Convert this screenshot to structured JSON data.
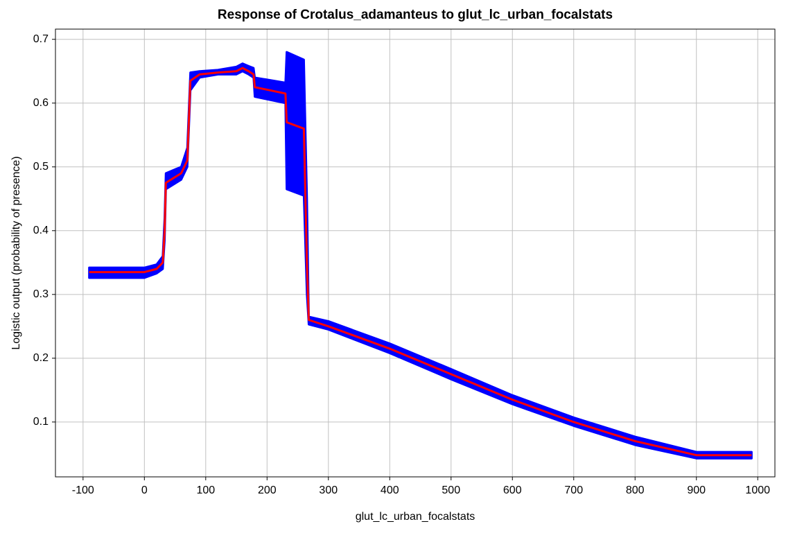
{
  "chart_data": {
    "type": "line",
    "title": "Response of Crotalus_adamanteus to glut_lc_urban_focalstats",
    "xlabel": "glut_lc_urban_focalstats",
    "ylabel": "Logistic output (probability of presence)",
    "x": [
      -90,
      0,
      20,
      30,
      33,
      35,
      60,
      70,
      75,
      90,
      120,
      150,
      160,
      170,
      178,
      180,
      230,
      232,
      260,
      265,
      268,
      300,
      400,
      500,
      600,
      700,
      800,
      900,
      990
    ],
    "series": [
      {
        "color": "#ff0000",
        "values": [
          0.335,
          0.335,
          0.34,
          0.35,
          0.4,
          0.475,
          0.49,
          0.51,
          0.635,
          0.645,
          0.648,
          0.65,
          0.655,
          0.65,
          0.645,
          0.625,
          0.615,
          0.57,
          0.56,
          0.35,
          0.26,
          0.25,
          0.215,
          0.175,
          0.135,
          0.1,
          0.07,
          0.048,
          0.048
        ]
      }
    ],
    "band": {
      "color": "#0000ff",
      "upper": [
        0.342,
        0.342,
        0.347,
        0.36,
        0.42,
        0.49,
        0.5,
        0.53,
        0.648,
        0.65,
        0.652,
        0.657,
        0.662,
        0.658,
        0.655,
        0.64,
        0.632,
        0.68,
        0.668,
        0.45,
        0.265,
        0.258,
        0.223,
        0.183,
        0.142,
        0.107,
        0.077,
        0.053,
        0.053
      ],
      "lower": [
        0.326,
        0.326,
        0.333,
        0.34,
        0.385,
        0.465,
        0.48,
        0.5,
        0.62,
        0.64,
        0.645,
        0.645,
        0.65,
        0.645,
        0.64,
        0.61,
        0.6,
        0.465,
        0.455,
        0.3,
        0.253,
        0.245,
        0.208,
        0.167,
        0.128,
        0.094,
        0.064,
        0.043,
        0.043
      ]
    },
    "xlim": [
      -145,
      1028
    ],
    "ylim": [
      0.014,
      0.716
    ],
    "xticks": [
      -100,
      0,
      100,
      200,
      300,
      400,
      500,
      600,
      700,
      800,
      900,
      1000
    ],
    "yticks": [
      0.1,
      0.2,
      0.3,
      0.4,
      0.5,
      0.6,
      0.7
    ],
    "grid": true
  }
}
